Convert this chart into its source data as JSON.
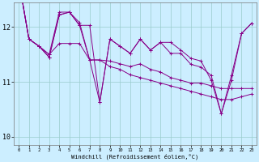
{
  "xlabel": "Windchill (Refroidissement éolien,°C)",
  "background_color": "#cceeff",
  "line_color": "#880088",
  "ylim": [
    9.85,
    12.45
  ],
  "xlim": [
    -0.5,
    23.5
  ],
  "yticks": [
    10,
    11,
    12
  ],
  "xticks": [
    0,
    1,
    2,
    3,
    4,
    5,
    6,
    7,
    8,
    9,
    10,
    11,
    12,
    13,
    14,
    15,
    16,
    17,
    18,
    19,
    20,
    21,
    22,
    23
  ],
  "series": [
    [
      12.85,
      11.78,
      11.65,
      11.45,
      12.22,
      12.27,
      12.03,
      12.03,
      10.63,
      11.78,
      11.65,
      11.52,
      11.78,
      11.58,
      11.72,
      11.52,
      11.52,
      11.32,
      11.27,
      11.12,
      10.42,
      11.12,
      11.88,
      12.07
    ],
    [
      12.85,
      11.78,
      11.65,
      11.45,
      12.22,
      12.27,
      12.03,
      11.4,
      11.4,
      11.38,
      11.33,
      11.28,
      11.33,
      11.23,
      11.18,
      11.08,
      11.03,
      10.98,
      10.98,
      10.93,
      10.88,
      10.88,
      10.88,
      10.88
    ],
    [
      12.85,
      11.78,
      11.65,
      11.5,
      12.27,
      12.27,
      12.08,
      11.4,
      10.63,
      11.78,
      11.65,
      11.52,
      11.78,
      11.58,
      11.72,
      11.72,
      11.58,
      11.43,
      11.38,
      11.03,
      10.42,
      11.03,
      11.88,
      12.07
    ],
    [
      12.85,
      11.78,
      11.65,
      11.5,
      11.7,
      11.7,
      11.7,
      11.4,
      11.4,
      11.28,
      11.23,
      11.13,
      11.08,
      11.03,
      10.98,
      10.93,
      10.88,
      10.83,
      10.78,
      10.73,
      10.68,
      10.68,
      10.73,
      10.78
    ]
  ]
}
